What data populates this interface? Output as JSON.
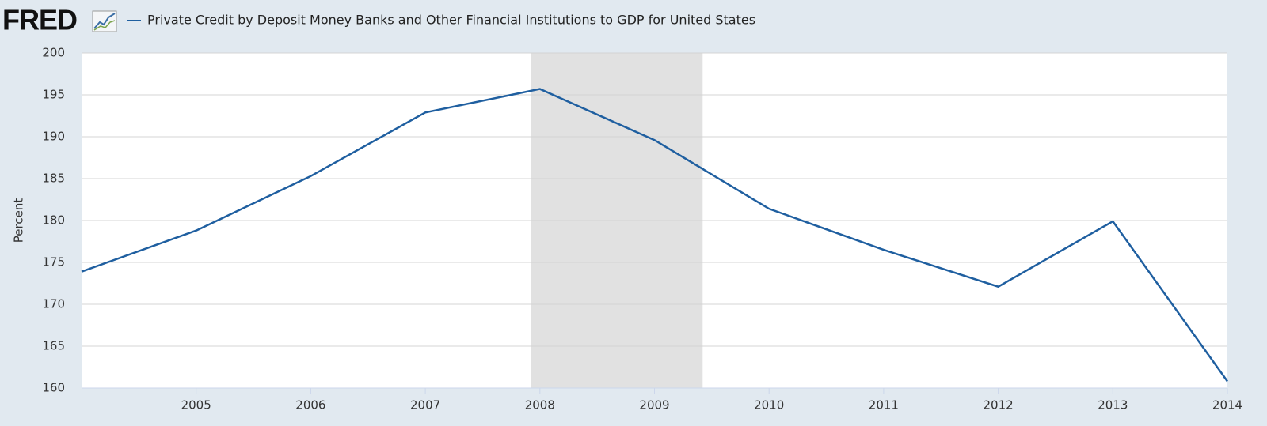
{
  "logo": "FRED",
  "chart_data": {
    "type": "line",
    "y_label": "Percent",
    "x": [
      2004,
      2005,
      2006,
      2007,
      2008,
      2009,
      2010,
      2011,
      2012,
      2013,
      2014
    ],
    "series": [
      {
        "name": "Private Credit by Deposit Money Banks and Other Financial Institutions to GDP for United States",
        "color": "#1f5fa0",
        "values": [
          173.9,
          178.8,
          185.3,
          192.9,
          195.7,
          189.6,
          181.4,
          176.5,
          172.1,
          179.9,
          160.8
        ]
      }
    ],
    "recessions": [
      [
        2007.92,
        2009.42
      ]
    ],
    "shade_color": "#e1e1e1",
    "xlim": [
      2004,
      2014
    ],
    "xticks": [
      2005,
      2006,
      2007,
      2008,
      2009,
      2010,
      2011,
      2012,
      2013,
      2014
    ],
    "ylim": [
      160,
      200
    ],
    "yticks": [
      160,
      165,
      170,
      175,
      180,
      185,
      190,
      195,
      200
    ],
    "grid": true
  }
}
